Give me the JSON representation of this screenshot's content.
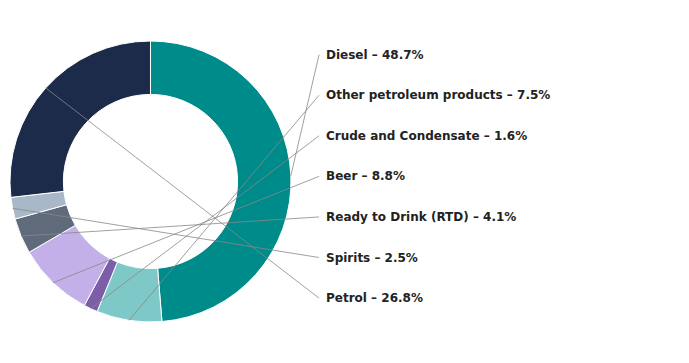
{
  "chart_data": {
    "type": "donut",
    "categories": [
      "Diesel – 48.7%",
      "Other petroleum products – 7.5%",
      "Crude and Condensate – 1.6%",
      "Beer – 8.8%",
      "Ready to Drink (RTD) – 4.1%",
      "Spirits – 2.5%",
      "Petrol – 26.8%"
    ],
    "values": [
      48.7,
      7.5,
      1.6,
      8.8,
      4.1,
      2.5,
      26.8
    ],
    "colors": [
      "#008B8B",
      "#7EC8C8",
      "#7B5EA7",
      "#C4B0E8",
      "#5F6B7A",
      "#A8B8C8",
      "#1C2B4A"
    ]
  }
}
